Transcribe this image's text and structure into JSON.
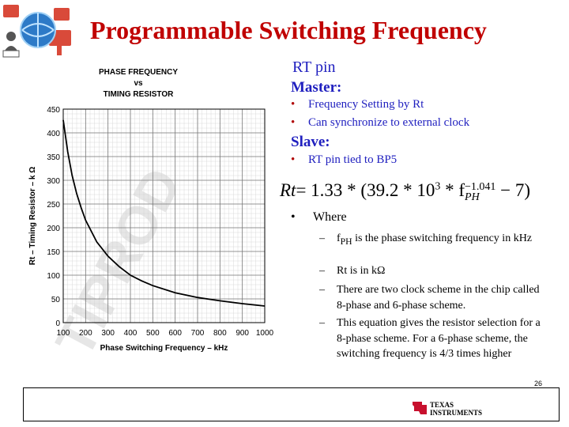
{
  "title": "Programmable Switching Frequency",
  "chart_data": {
    "type": "line",
    "title": "PHASE FREQUENCY vs TIMING RESISTOR",
    "title_lines": [
      "PHASE FREQUENCY",
      "vs",
      "TIMING RESISTOR"
    ],
    "xlabel": "Phase Switching Frequency – kHz",
    "ylabel": "Rt – Timing Resistor – k Ω",
    "xlim": [
      100,
      1000
    ],
    "ylim": [
      0,
      450
    ],
    "xticks": [
      100,
      200,
      300,
      400,
      500,
      600,
      700,
      800,
      900,
      1000
    ],
    "yticks": [
      0,
      50,
      100,
      150,
      200,
      250,
      300,
      350,
      400,
      450
    ],
    "grid": true,
    "series": [
      {
        "x": [
          100,
          120,
          140,
          160,
          180,
          200,
          250,
          300,
          350,
          400,
          450,
          500,
          600,
          700,
          800,
          900,
          1000
        ],
        "y": [
          427,
          360,
          310,
          272,
          242,
          216,
          170,
          140,
          118,
          100,
          88,
          78,
          63,
          53,
          46,
          40,
          35
        ]
      }
    ]
  },
  "rt_heading": "RT pin",
  "master_heading": "Master:",
  "master_bullets": [
    "Frequency Setting by Rt",
    "Can synchronize to external clock"
  ],
  "slave_heading": "Slave:",
  "slave_bullets": [
    "RT pin tied to BP5"
  ],
  "equation": {
    "lhs": "Rt",
    "part1": "= 1.33 * (39.2 * 10",
    "exp1": "3",
    "part2": " * f",
    "sub": "PH",
    "exp2": "−1.041",
    "part3": " − 7)"
  },
  "where_label": "Where",
  "where_items": [
    {
      "pre": "f",
      "sub": "PH",
      "post": " is the phase switching frequency in kHz"
    },
    {
      "pre": "Rt is in kΩ",
      "sub": "",
      "post": ""
    },
    {
      "pre": "There are two clock scheme in the chip called 8-phase and 6-phase scheme.",
      "sub": "",
      "post": ""
    },
    {
      "pre": "This equation gives the resistor selection for a 8-phase scheme. For a 6-phase scheme, the switching frequency is 4/3 times higher",
      "sub": "",
      "post": ""
    }
  ],
  "page_number": "26",
  "footer_logo": {
    "line1": "TEXAS",
    "line2": "INSTRUMENTS"
  },
  "colors": {
    "title": "#c00000",
    "heading": "#1f1fbf",
    "ti_red": "#c8102e"
  }
}
